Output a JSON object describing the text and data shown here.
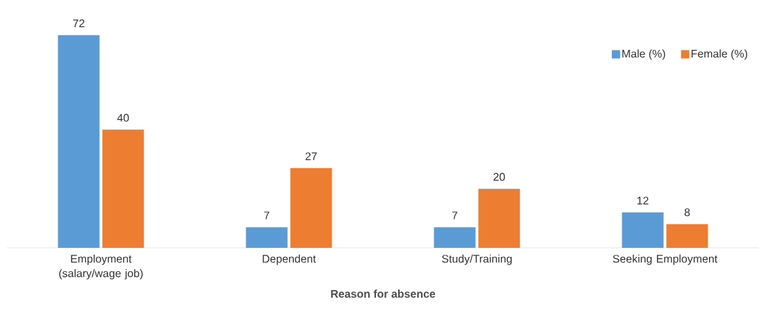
{
  "chart_data": {
    "type": "bar",
    "xlabel": "Reason for absence",
    "categories": [
      "Employment (salary/wage job)",
      "Dependent",
      "Study/Training",
      "Seeking Employment"
    ],
    "series": [
      {
        "name": "Male (%)",
        "color": "#5b9bd5",
        "values": [
          72,
          7,
          7,
          12
        ]
      },
      {
        "name": "Female (%)",
        "color": "#ed7d31",
        "values": [
          40,
          27,
          20,
          8
        ]
      }
    ],
    "data_labels": true,
    "legend": "top right"
  }
}
